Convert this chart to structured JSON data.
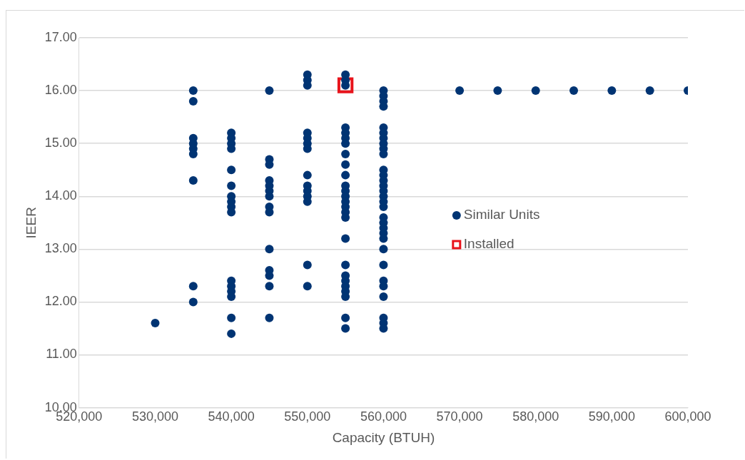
{
  "chart_data": {
    "type": "scatter",
    "xlabel": "Capacity (BTUH)",
    "ylabel": "IEER",
    "xlim": [
      520000,
      600000
    ],
    "ylim": [
      10,
      17
    ],
    "xticks": [
      {
        "value": 520000,
        "label": "520,000"
      },
      {
        "value": 530000,
        "label": "530,000"
      },
      {
        "value": 540000,
        "label": "540,000"
      },
      {
        "value": 550000,
        "label": "550,000"
      },
      {
        "value": 560000,
        "label": "560,000"
      },
      {
        "value": 570000,
        "label": "570,000"
      },
      {
        "value": 580000,
        "label": "580,000"
      },
      {
        "value": 590000,
        "label": "590,000"
      },
      {
        "value": 600000,
        "label": "600,000"
      }
    ],
    "yticks": [
      {
        "value": 10,
        "label": "10.00"
      },
      {
        "value": 11,
        "label": "11.00"
      },
      {
        "value": 12,
        "label": "12.00"
      },
      {
        "value": 13,
        "label": "13.00"
      },
      {
        "value": 14,
        "label": "14.00"
      },
      {
        "value": 15,
        "label": "15.00"
      },
      {
        "value": 16,
        "label": "16.00"
      },
      {
        "value": 17,
        "label": "17.00"
      }
    ],
    "grid": "y",
    "legend": "right",
    "series": [
      {
        "name": "Similar Units",
        "color": "#003473",
        "marker": "circle",
        "x": [
          530000,
          535000,
          535000,
          535000,
          535000,
          535000,
          535000,
          535000,
          535000,
          535000,
          540000,
          540000,
          540000,
          540000,
          540000,
          540000,
          540000,
          540000,
          540000,
          540000,
          540000,
          540000,
          540000,
          540000,
          540000,
          540000,
          545000,
          545000,
          545000,
          545000,
          545000,
          545000,
          545000,
          545000,
          545000,
          545000,
          545000,
          545000,
          545000,
          545000,
          550000,
          550000,
          550000,
          550000,
          550000,
          550000,
          550000,
          550000,
          550000,
          550000,
          550000,
          550000,
          550000,
          550000,
          555000,
          555000,
          555000,
          555000,
          555000,
          555000,
          555000,
          555000,
          555000,
          555000,
          555000,
          555000,
          555000,
          555000,
          555000,
          555000,
          555000,
          555000,
          555000,
          555000,
          555000,
          555000,
          555000,
          555000,
          555000,
          555000,
          560000,
          560000,
          560000,
          560000,
          560000,
          560000,
          560000,
          560000,
          560000,
          560000,
          560000,
          560000,
          560000,
          560000,
          560000,
          560000,
          560000,
          560000,
          560000,
          560000,
          560000,
          560000,
          560000,
          560000,
          560000,
          560000,
          560000,
          560000,
          560000,
          560000,
          560000,
          570000,
          575000,
          580000,
          585000,
          590000,
          595000,
          600000
        ],
        "values": [
          11.6,
          16.0,
          15.8,
          15.1,
          15.0,
          14.9,
          14.8,
          14.3,
          12.3,
          12.0,
          15.2,
          15.1,
          15.0,
          14.9,
          14.5,
          14.2,
          14.0,
          13.9,
          13.8,
          13.7,
          12.4,
          12.3,
          12.2,
          12.1,
          11.7,
          11.4,
          16.0,
          14.7,
          14.6,
          14.3,
          14.2,
          14.1,
          14.0,
          13.8,
          13.7,
          13.0,
          12.6,
          12.5,
          12.3,
          11.7,
          16.3,
          16.2,
          16.1,
          15.2,
          15.1,
          15.0,
          14.9,
          14.4,
          14.2,
          14.1,
          14.0,
          13.9,
          12.7,
          12.3,
          16.3,
          16.2,
          16.1,
          15.3,
          15.2,
          15.1,
          15.0,
          14.8,
          14.6,
          14.4,
          14.2,
          14.1,
          14.0,
          13.9,
          13.8,
          13.7,
          13.6,
          13.2,
          12.7,
          12.5,
          12.4,
          12.3,
          12.2,
          12.1,
          11.7,
          11.5,
          16.0,
          15.9,
          15.8,
          15.7,
          15.3,
          15.2,
          15.1,
          15.0,
          14.9,
          14.8,
          14.5,
          14.4,
          14.3,
          14.2,
          14.1,
          14.0,
          13.9,
          13.8,
          13.6,
          13.5,
          13.4,
          13.3,
          13.2,
          13.0,
          12.7,
          12.4,
          12.3,
          12.1,
          11.7,
          11.6,
          11.5,
          16.0,
          16.0,
          16.0,
          16.0,
          16.0,
          16.0,
          16.0
        ]
      },
      {
        "name": "Installed",
        "color": "#e8141c",
        "marker": "square",
        "x": [
          555000
        ],
        "values": [
          16.1
        ]
      }
    ]
  }
}
